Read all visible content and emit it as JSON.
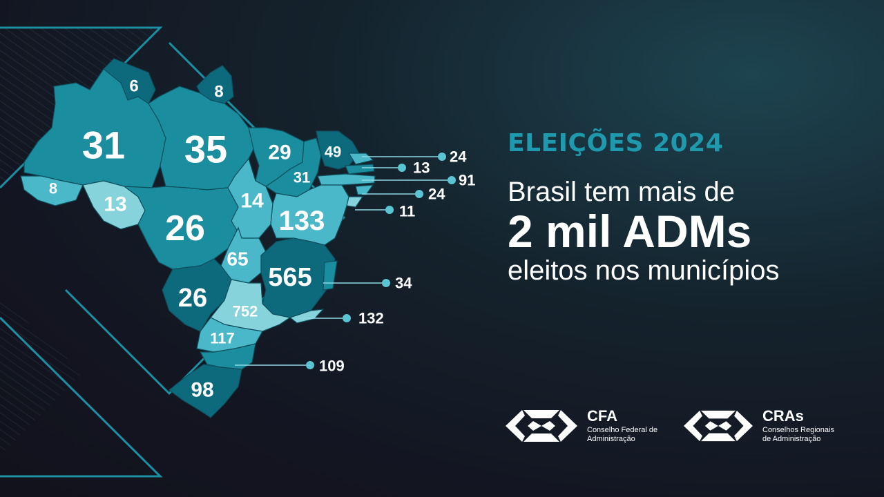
{
  "headline": {
    "eyebrow": "ELEIÇÕES 2024",
    "line1": "Brasil tem mais de",
    "line2": "2 mil ADMs",
    "line3": "eleitos nos municípios"
  },
  "states": [
    {
      "code": "RR",
      "count": "6"
    },
    {
      "code": "AP",
      "count": "8"
    },
    {
      "code": "AM",
      "count": "31"
    },
    {
      "code": "PA",
      "count": "35"
    },
    {
      "code": "AC",
      "count": "8"
    },
    {
      "code": "RO",
      "count": "13"
    },
    {
      "code": "MT",
      "count": "26"
    },
    {
      "code": "TO",
      "count": "14"
    },
    {
      "code": "MA",
      "count": "29"
    },
    {
      "code": "CE",
      "count": "49"
    },
    {
      "code": "PI",
      "count": "31"
    },
    {
      "code": "BA",
      "count": "133"
    },
    {
      "code": "GO",
      "count": "65"
    },
    {
      "code": "MG",
      "count": "565"
    },
    {
      "code": "MS",
      "count": "26"
    },
    {
      "code": "SP",
      "count": "752"
    },
    {
      "code": "PR",
      "count": "117"
    },
    {
      "code": "RS",
      "count": "98"
    }
  ],
  "callouts": [
    {
      "code": "RN",
      "count": "24"
    },
    {
      "code": "PB",
      "count": "13"
    },
    {
      "code": "PE",
      "count": "91"
    },
    {
      "code": "AL",
      "count": "24"
    },
    {
      "code": "SE",
      "count": "11"
    },
    {
      "code": "ES",
      "count": "34"
    },
    {
      "code": "RJ",
      "count": "132"
    },
    {
      "code": "SC",
      "count": "109"
    }
  ],
  "logos": {
    "cfa": {
      "title": "CFA",
      "line1": "Conselho Federal de",
      "line2": "Administração"
    },
    "cras": {
      "title": "CRAs",
      "line1": "Conselhos Regionais",
      "line2": "de Administração"
    }
  },
  "colors": {
    "accent": "#1f99ad",
    "map_dark": "#0d6a7d",
    "map_mid": "#1a8d9f",
    "map_light": "#4ab8c8",
    "map_pale": "#86d3dc",
    "callout_dot": "#5ac4d3"
  }
}
